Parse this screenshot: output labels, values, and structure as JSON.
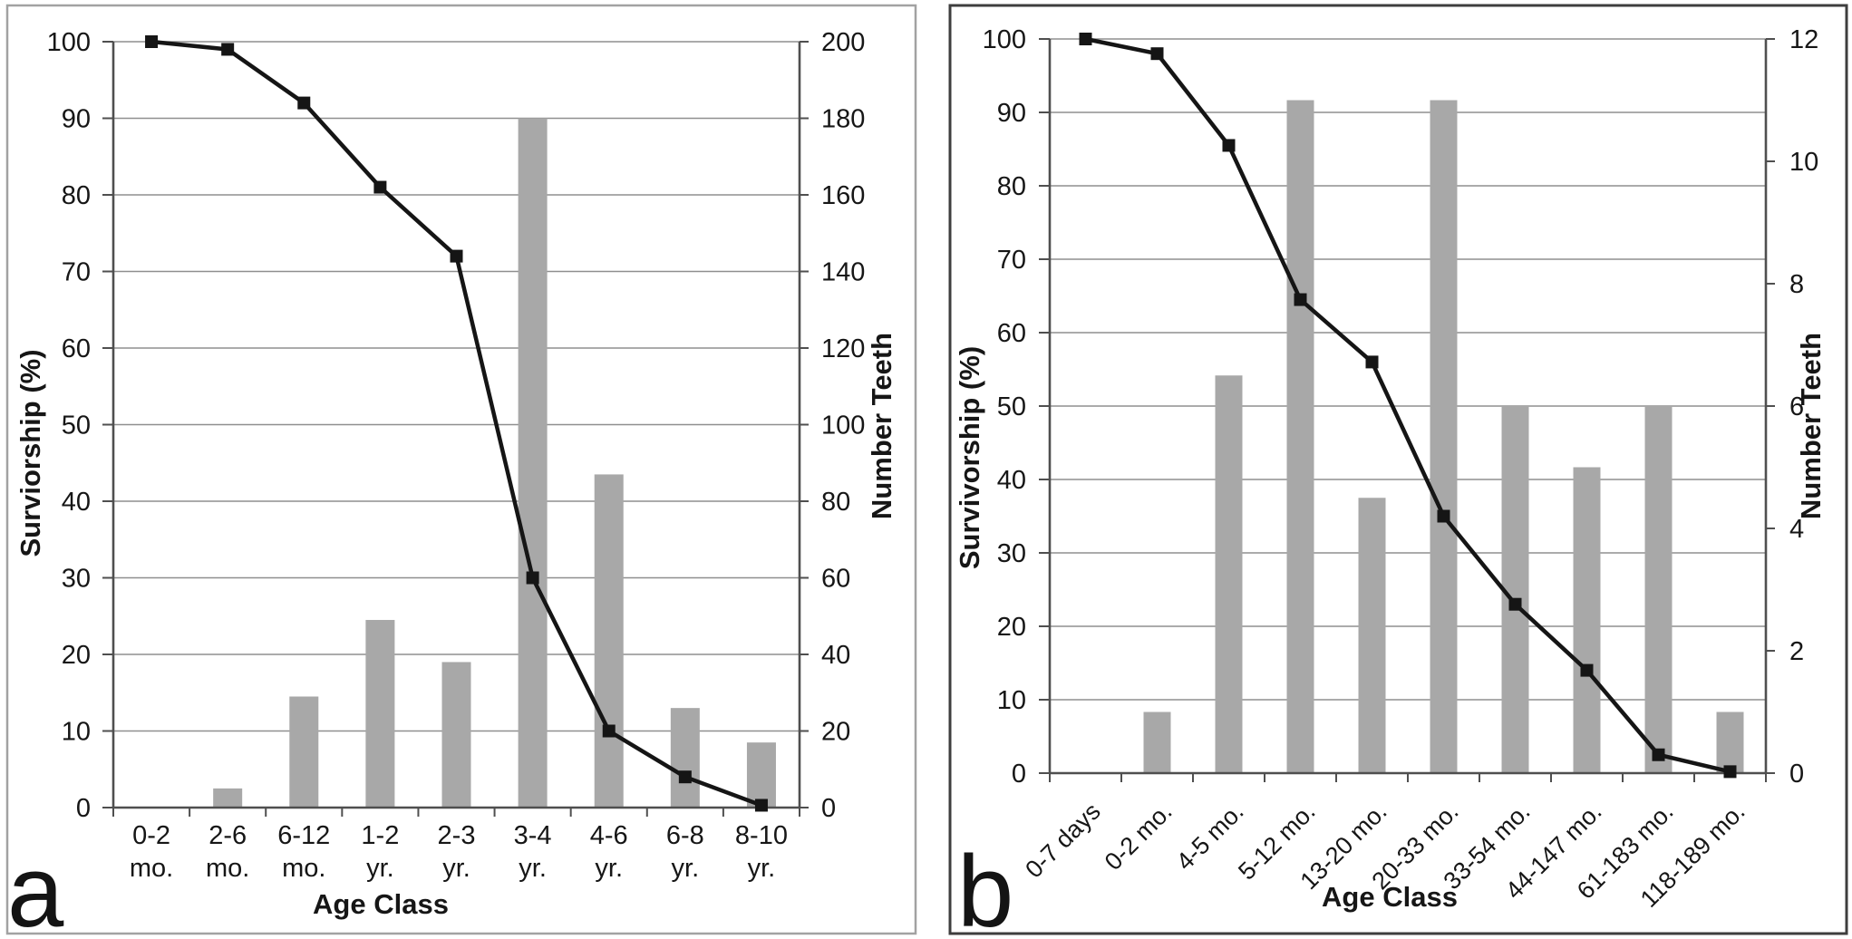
{
  "figure": {
    "panels": [
      {
        "letter": "a",
        "left_axis_title": "Surviorship (%)",
        "right_axis_title": "Number Teeth",
        "x_axis_title": "Age Class"
      },
      {
        "letter": "b",
        "left_axis_title": "Survivorship (%)",
        "right_axis_title": "Number Teeth",
        "x_axis_title": "Age Class"
      }
    ]
  },
  "chart_data": [
    {
      "type": "bar",
      "subtype": "combo-bar-line-dual-axis",
      "panel": "a",
      "categories": [
        "0-2 mo.",
        "2-6 mo.",
        "6-12 mo.",
        "1-2 yr.",
        "2-3 yr.",
        "3-4 yr.",
        "4-6 yr.",
        "6-8 yr.",
        "8-10 yr."
      ],
      "series": [
        {
          "name": "Surviorship (%)",
          "type": "line",
          "axis": "left",
          "color": "#151515",
          "marker": "square",
          "values": [
            100,
            99,
            92,
            81,
            72,
            30,
            10,
            4,
            0.3
          ]
        },
        {
          "name": "Number Teeth",
          "type": "bar",
          "axis": "right",
          "color": "#a8a8a8",
          "values": [
            0,
            5,
            29,
            49,
            38,
            180,
            87,
            26,
            17
          ]
        }
      ],
      "left_axis": {
        "title": "Surviorship (%)",
        "min": 0,
        "max": 100,
        "ticks": [
          0,
          10,
          20,
          30,
          40,
          50,
          60,
          70,
          80,
          90,
          100
        ]
      },
      "right_axis": {
        "title": "Number Teeth",
        "min": 0,
        "max": 200,
        "ticks": [
          0,
          20,
          40,
          60,
          80,
          100,
          120,
          140,
          160,
          180,
          200
        ]
      },
      "x_axis": {
        "title": "Age Class",
        "label_rotation": 0
      },
      "grid": "horizontal",
      "legend": "none"
    },
    {
      "type": "bar",
      "subtype": "combo-bar-line-dual-axis",
      "panel": "b",
      "categories": [
        "0-7 days",
        "0-2 mo.",
        "4-5 mo.",
        "5-12 mo.",
        "13-20 mo.",
        "20-33 mo.",
        "33-54 mo.",
        "44-147 mo.",
        "61-183 mo.",
        "118-189 mo."
      ],
      "series": [
        {
          "name": "Survivorship (%)",
          "type": "line",
          "axis": "left",
          "color": "#151515",
          "marker": "square",
          "values": [
            100,
            98,
            85.5,
            64.5,
            56,
            35,
            23,
            14,
            2.5,
            0.2
          ]
        },
        {
          "name": "Number Teeth",
          "type": "bar",
          "axis": "right",
          "color": "#a8a8a8",
          "values": [
            0,
            1,
            6.5,
            11,
            4.5,
            11,
            6,
            5,
            6,
            1
          ]
        }
      ],
      "left_axis": {
        "title": "Survivorship (%)",
        "min": 0,
        "max": 100,
        "ticks": [
          0,
          10,
          20,
          30,
          40,
          50,
          60,
          70,
          80,
          90,
          100
        ]
      },
      "right_axis": {
        "title": "Number Teeth",
        "min": 0,
        "max": 12,
        "ticks": [
          0,
          2,
          4,
          6,
          8,
          10,
          12
        ]
      },
      "x_axis": {
        "title": "Age Class",
        "label_rotation": -45
      },
      "grid": "horizontal",
      "legend": "none"
    }
  ]
}
